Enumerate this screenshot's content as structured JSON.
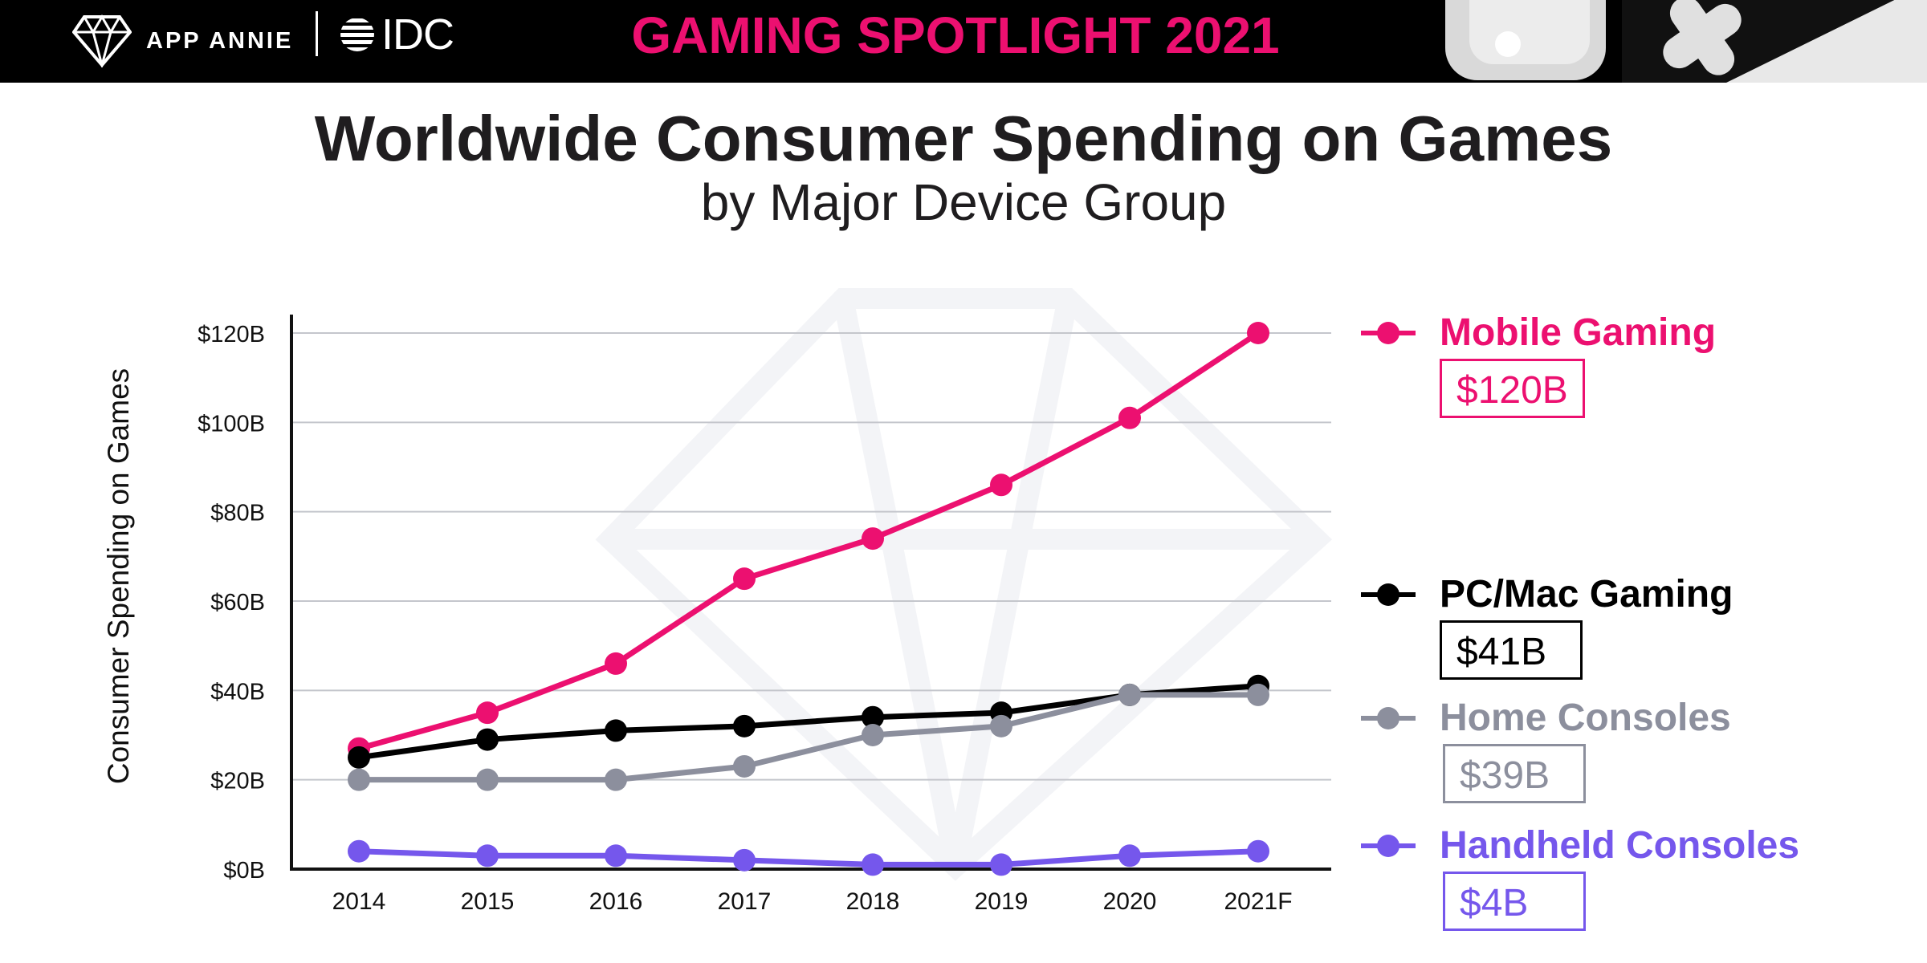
{
  "header": {
    "brand_left": "APP ANNIE",
    "brand_right": "IDC",
    "banner_title": "GAMING SPOTLIGHT 2021",
    "logo_icon": "diamond-icon",
    "accent_color": "#ec1070"
  },
  "chart_data": {
    "type": "line",
    "title": "Worldwide Consumer Spending on Games",
    "subtitle": "by Major Device Group",
    "xlabel": "",
    "ylabel": "Consumer Spending on Games",
    "categories": [
      "2014",
      "2015",
      "2016",
      "2017",
      "2018",
      "2019",
      "2020",
      "2021F"
    ],
    "y_ticks": [
      "$0B",
      "$20B",
      "$40B",
      "$60B",
      "$80B",
      "$100B",
      "$120B"
    ],
    "ylim": [
      0,
      120
    ],
    "grid": true,
    "legend_position": "right",
    "series": [
      {
        "name": "Mobile Gaming",
        "color": "#ec1070",
        "values": [
          27,
          35,
          46,
          65,
          74,
          86,
          101,
          120
        ],
        "total_label": "$120B"
      },
      {
        "name": "PC/Mac Gaming",
        "color": "#000000",
        "values": [
          25,
          29,
          31,
          32,
          34,
          35,
          39,
          41
        ],
        "total_label": "$41B"
      },
      {
        "name": "Home Consoles",
        "color": "#8c8f9d",
        "values": [
          20,
          20,
          20,
          23,
          30,
          32,
          39,
          39
        ],
        "total_label": "$39B"
      },
      {
        "name": "Handheld Consoles",
        "color": "#7557ec",
        "values": [
          4,
          3,
          3,
          2,
          1,
          1,
          3,
          4
        ],
        "total_label": "$4B"
      }
    ]
  }
}
